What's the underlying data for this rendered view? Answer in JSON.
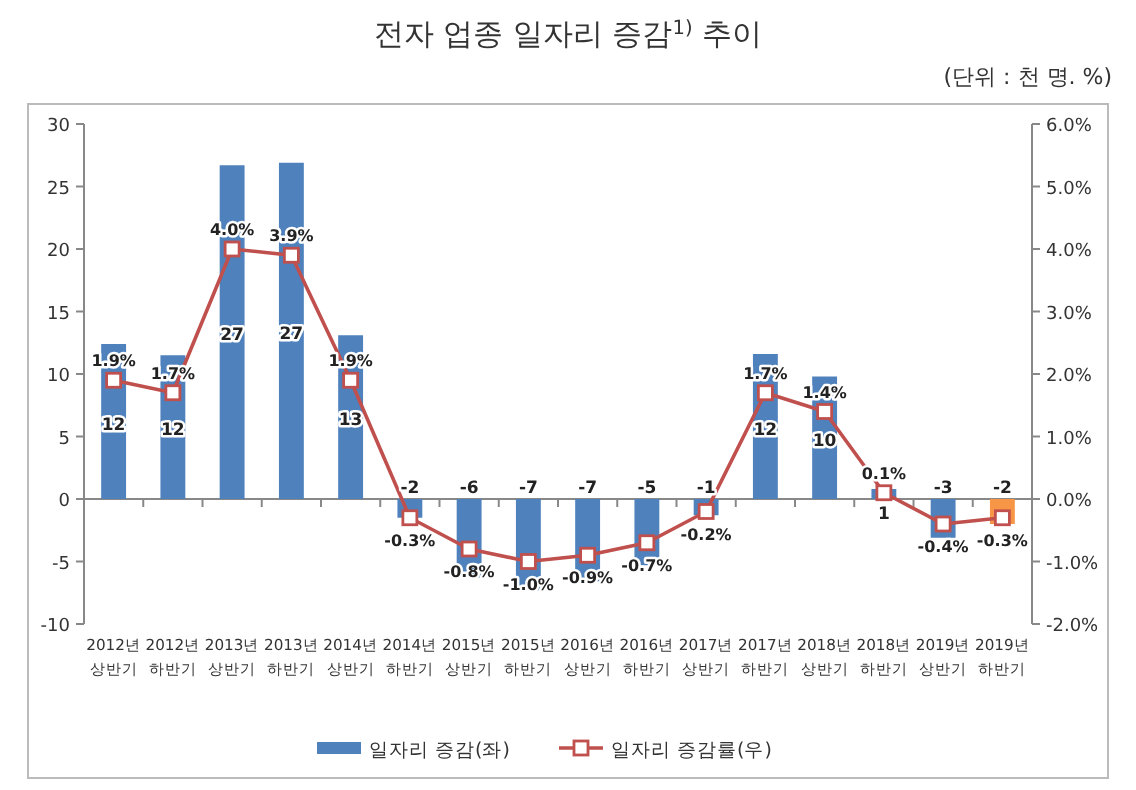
{
  "chart_data": {
    "type": "bar",
    "title": "전자 업종 일자리 증감$^{1)}$ 추이",
    "subtitle": "(단위 : 천 명. %)",
    "categories": [
      "2012년 상반기",
      "2012년 하반기",
      "2013년 상반기",
      "2013년 하반기",
      "2014년 상반기",
      "2014년 하반기",
      "2015년 상반기",
      "2015년 하반기",
      "2016년 상반기",
      "2016년 하반기",
      "2017년 상반기",
      "2017년 하반기",
      "2018년 상반기",
      "2018년 하반기",
      "2019년 상반기",
      "2019년 하반기"
    ],
    "series": [
      {
        "name": "일자리 증감(좌)",
        "color": "#4f81bd",
        "colors": [
          "#4f81bd",
          "#4f81bd",
          "#4f81bd",
          "#4f81bd",
          "#4f81bd",
          "#4f81bd",
          "#4f81bd",
          "#4f81bd",
          "#4f81bd",
          "#4f81bd",
          "#4f81bd",
          "#4f81bd",
          "#4f81bd",
          "#4f81bd",
          "#4f81bd",
          "#f79646"
        ],
        "values": [
          12.4,
          11.5,
          26.7,
          26.9,
          13.1,
          -1.5,
          -6.3,
          -7.3,
          -6.6,
          -5.3,
          -1.3,
          11.6,
          9.8,
          0.8,
          -3.1,
          -2.0
        ],
        "value_labels": [
          "12",
          "12",
          "27",
          "27",
          "13",
          "-2",
          "-6",
          "-7",
          "-7",
          "-5",
          "-1",
          "12",
          "10",
          "1",
          "-3",
          "-2"
        ]
      },
      {
        "name": "일자리 증감률(우)",
        "type": "line",
        "axis": "y2",
        "color": "#c0504d",
        "marker": "square",
        "values": [
          1.9,
          1.7,
          4.0,
          3.9,
          1.9,
          -0.3,
          -0.8,
          -1.0,
          -0.9,
          -0.7,
          -0.2,
          1.7,
          1.4,
          0.1,
          -0.4,
          -0.3
        ],
        "value_labels": [
          "1.9%",
          "1.7%",
          "4.0%",
          "3.9%",
          "1.9%",
          "-0.3%",
          "-0.8%",
          "-1.0%",
          "-0.9%",
          "-0.7%",
          "-0.2%",
          "1.7%",
          "1.4%",
          "0.1%",
          "-0.4%",
          "-0.3%"
        ]
      }
    ],
    "ylim": [
      -10,
      30
    ],
    "yticks": [
      -10,
      -5,
      0,
      5,
      10,
      15,
      20,
      25,
      30
    ],
    "y2lim": [
      -2,
      6
    ],
    "y2ticks": [
      {
        "value": -2,
        "label": "-2.0%"
      },
      {
        "value": -1,
        "label": "-1.0%"
      },
      {
        "value": 0,
        "label": "0.0%"
      },
      {
        "value": 1,
        "label": "1.0%"
      },
      {
        "value": 2,
        "label": "2.0%"
      },
      {
        "value": 3,
        "label": "3.0%"
      },
      {
        "value": 4,
        "label": "4.0%"
      },
      {
        "value": 5,
        "label": "5.0%"
      },
      {
        "value": 6,
        "label": "6.0%"
      }
    ],
    "legend": "bottom"
  }
}
